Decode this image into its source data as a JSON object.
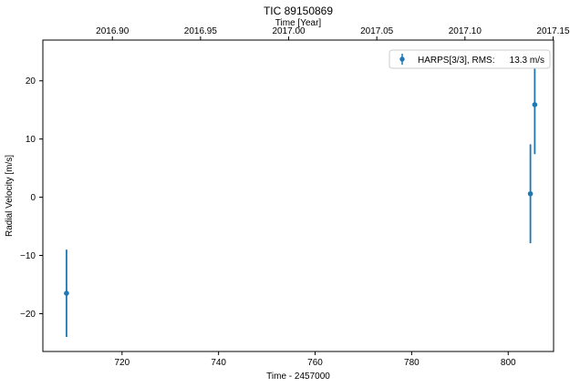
{
  "chart_data": {
    "type": "scatter",
    "title": "TIC 89150869",
    "xlabel": "Time - 2457000",
    "ylabel": "Radial Velocity [m/s]",
    "top_xlabel": "Time [Year]",
    "xlim": [
      703.6,
      809.4
    ],
    "ylim": [
      -26.5,
      27.0
    ],
    "xticks": [
      720,
      740,
      760,
      780,
      800
    ],
    "yticks": [
      -20,
      -10,
      0,
      10,
      20
    ],
    "top_xticks": [
      {
        "x": 718.0,
        "label": "2016.90"
      },
      {
        "x": 736.26,
        "label": "2016.95"
      },
      {
        "x": 754.52,
        "label": "2017.00"
      },
      {
        "x": 772.78,
        "label": "2017.05"
      },
      {
        "x": 791.04,
        "label": "2017.10"
      },
      {
        "x": 809.3,
        "label": "2017.15"
      }
    ],
    "grid": false,
    "legend_position": "top-right",
    "series": [
      {
        "name": "HARPS[3/3], RMS:",
        "rms": "13.3 m/s",
        "color": "#1f77b4",
        "points": [
          {
            "x": 708.5,
            "y": -16.5,
            "err": 7.5
          },
          {
            "x": 804.6,
            "y": 0.6,
            "err": 8.5
          },
          {
            "x": 805.5,
            "y": 15.9,
            "err": 8.5
          }
        ]
      }
    ]
  }
}
